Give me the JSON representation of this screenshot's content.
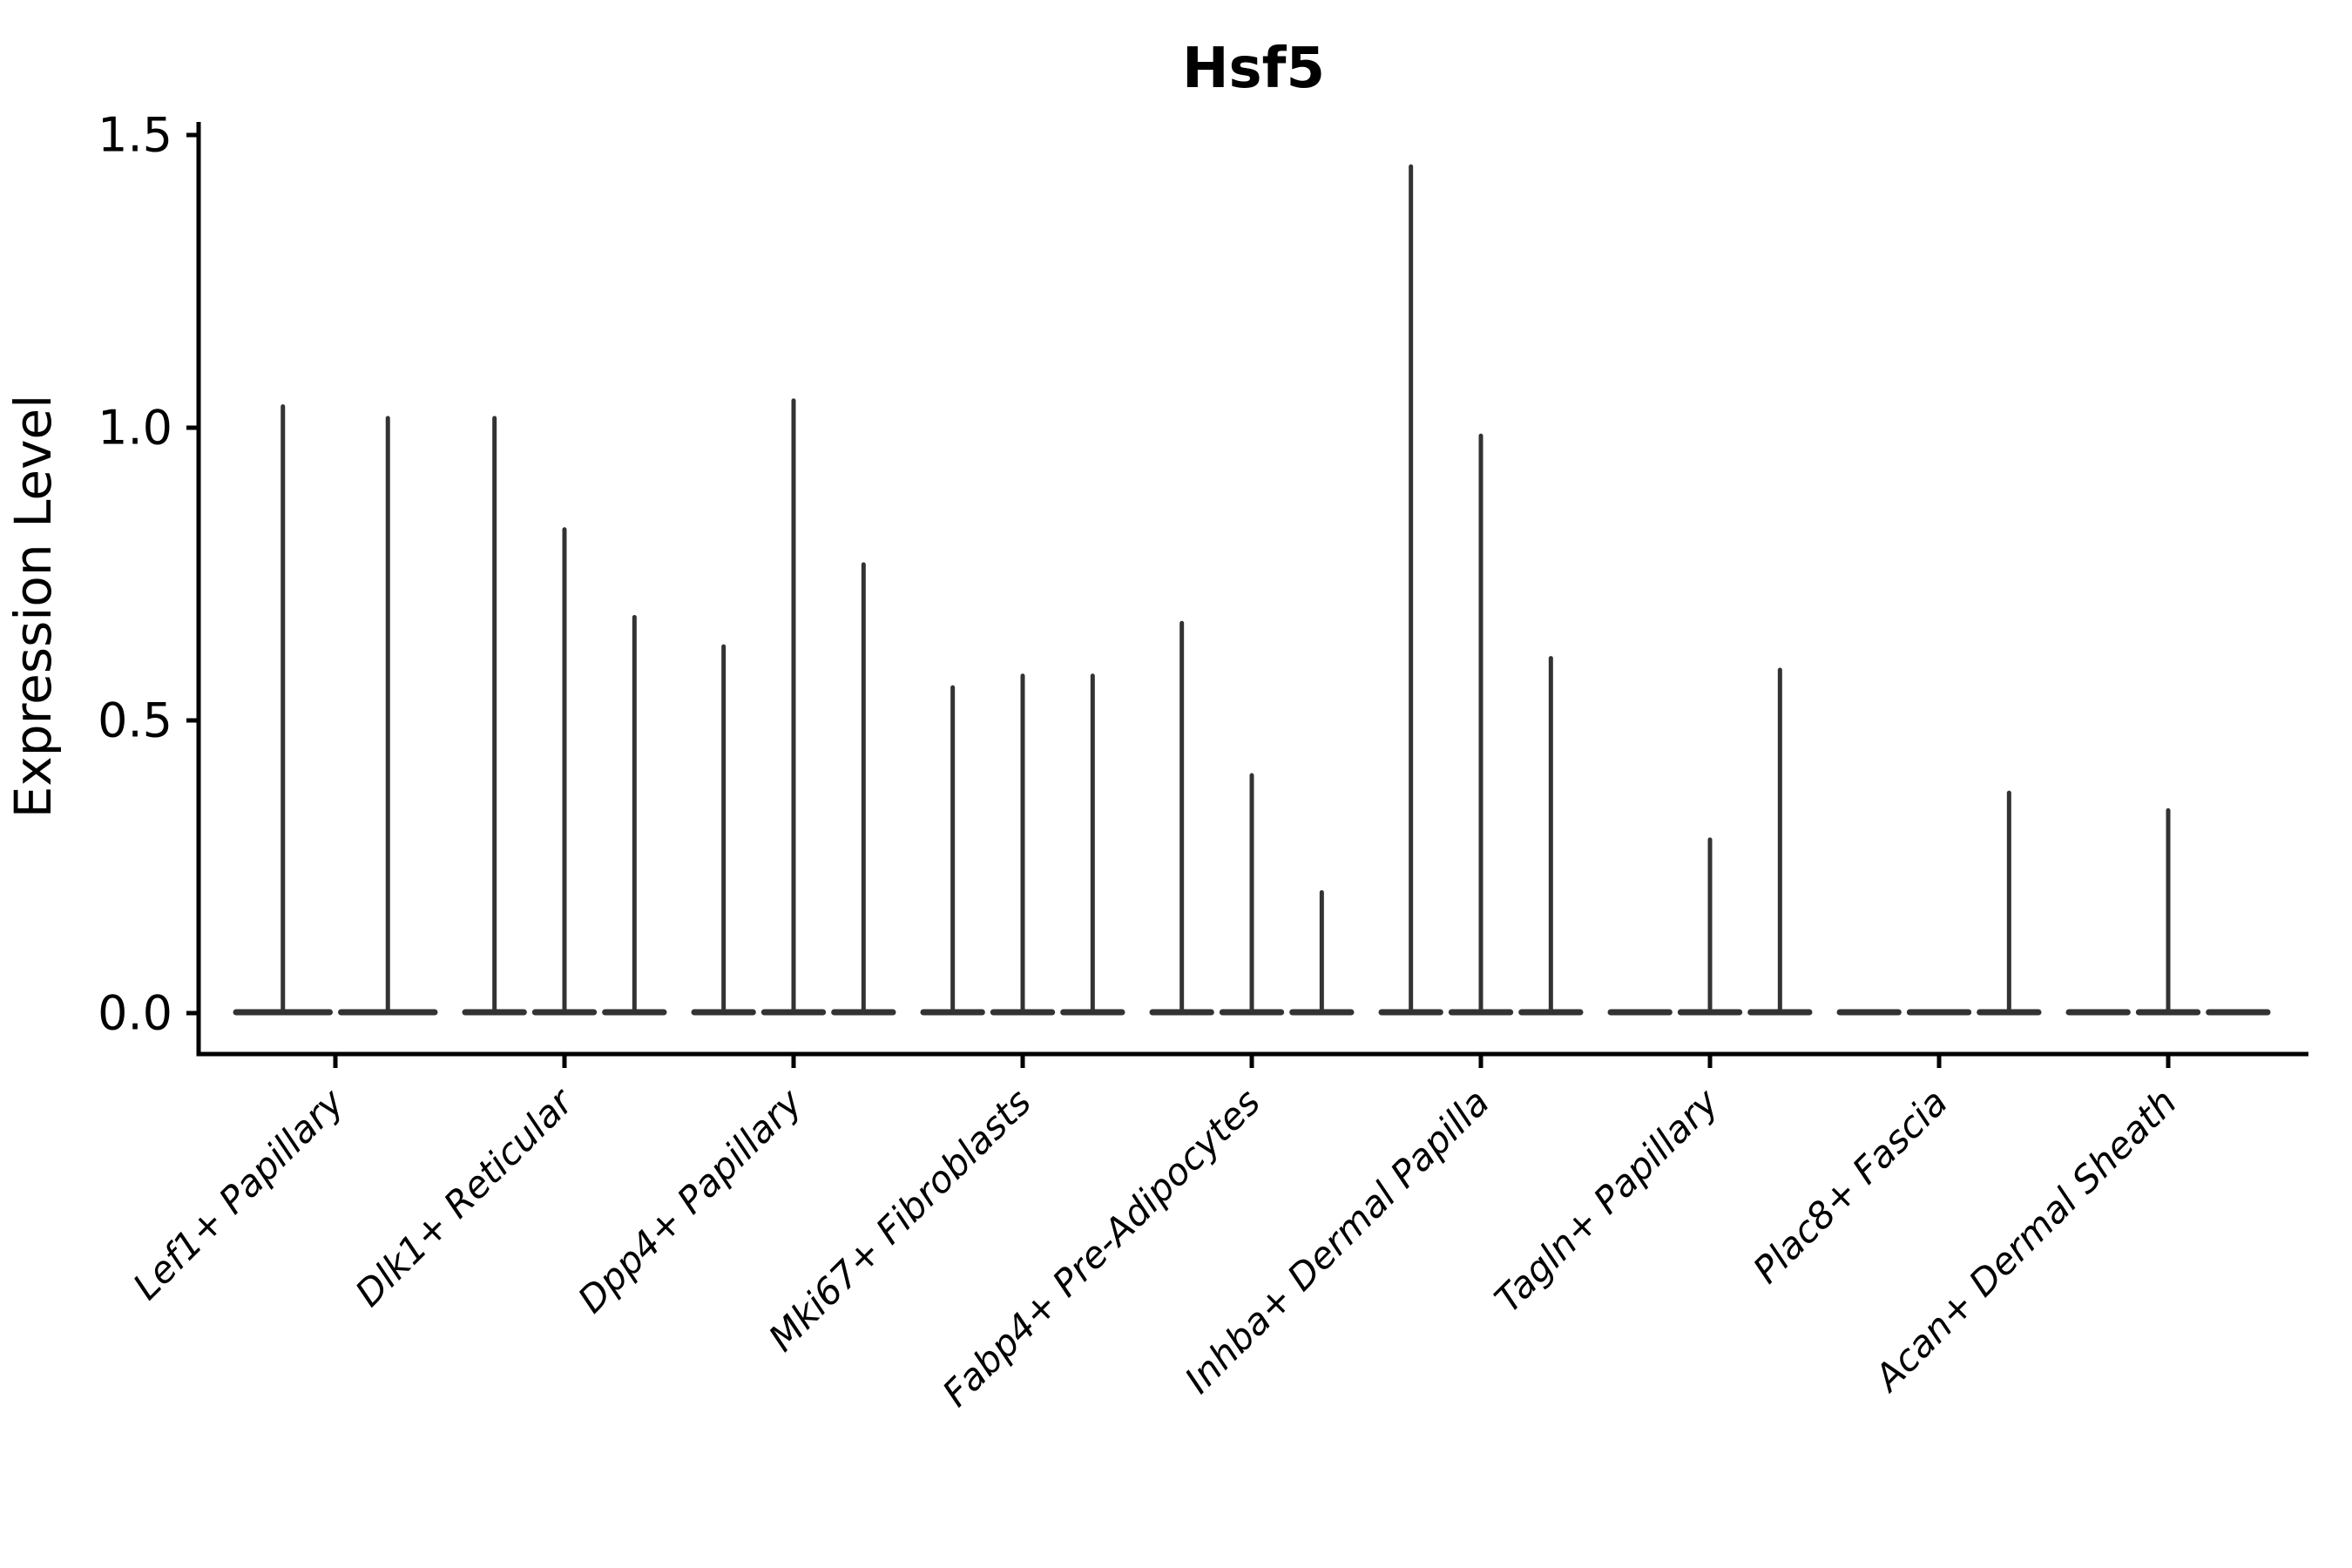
{
  "chart_data": {
    "type": "violin",
    "title": "Hsf5",
    "ylabel": "Expression Level",
    "xlabel": "",
    "ylim": [
      0.0,
      1.5
    ],
    "yticks": [
      0.0,
      0.5,
      1.0,
      1.5
    ],
    "ytick_labels": [
      "0.0",
      "0.5",
      "1.0",
      "1.5"
    ],
    "grid": false,
    "legend_position": "none",
    "categories": [
      "Lef1+ Papillary",
      "Dlk1+ Reticular",
      "Dpp4+ Papillary",
      "Mki67+ Fibroblasts",
      "Fabp4+ Pre-Adipocytes",
      "Inhba+ Dermal Papilla",
      "Tagln+ Papillary",
      "Plac8+ Fascia",
      "Acan+ Dermal Sheath"
    ],
    "groups": [
      {
        "category": "Lef1+ Papillary",
        "violin_maxima": [
          1.04,
          1.02
        ]
      },
      {
        "category": "Dlk1+ Reticular",
        "violin_maxima": [
          1.02,
          0.83,
          0.68
        ]
      },
      {
        "category": "Dpp4+ Papillary",
        "violin_maxima": [
          0.63,
          1.05,
          0.77
        ]
      },
      {
        "category": "Mki67+ Fibroblasts",
        "violin_maxima": [
          0.56,
          0.58,
          0.58
        ]
      },
      {
        "category": "Fabp4+ Pre-Adipocytes",
        "violin_maxima": [
          0.67,
          0.41,
          0.21
        ]
      },
      {
        "category": "Inhba+ Dermal Papilla",
        "violin_maxima": [
          1.45,
          0.99,
          0.61
        ]
      },
      {
        "category": "Tagln+ Papillary",
        "violin_maxima": [
          0.0,
          0.3,
          0.59
        ]
      },
      {
        "category": "Plac8+ Fascia",
        "violin_maxima": [
          0.0,
          0.0,
          0.38
        ]
      },
      {
        "category": "Acan+ Dermal Sheath",
        "violin_maxima": [
          0.0,
          0.35,
          0.0
        ]
      }
    ],
    "colors": {
      "violin": "#333333",
      "axis": "#000000",
      "background": "#ffffff"
    }
  }
}
